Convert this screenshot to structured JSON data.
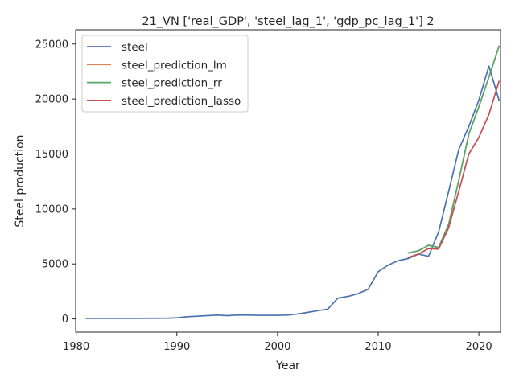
{
  "chart_data": {
    "type": "line",
    "title": "21_VN ['real_GDP', 'steel_lag_1', 'gdp_pc_lag_1'] 2",
    "xlabel": "Year",
    "ylabel": "Steel production",
    "xlim": [
      1979.95,
      2022.15
    ],
    "ylim": [
      -1200,
      26300
    ],
    "xticks": [
      1980,
      1990,
      2000,
      2010,
      2020
    ],
    "yticks": [
      0,
      5000,
      10000,
      15000,
      20000,
      25000
    ],
    "grid": false,
    "legend_position": "top-left",
    "series": [
      {
        "name": "steel",
        "color": "#4c72b0",
        "x": [
          1981,
          1982,
          1983,
          1984,
          1985,
          1986,
          1987,
          1988,
          1989,
          1990,
          1991,
          1992,
          1993,
          1994,
          1995,
          1996,
          1997,
          1998,
          1999,
          2000,
          2001,
          2002,
          2003,
          2004,
          2005,
          2006,
          2007,
          2008,
          2009,
          2010,
          2011,
          2012,
          2013,
          2014,
          2015,
          2016,
          2017,
          2018,
          2019,
          2020,
          2021,
          2022
        ],
        "y": [
          50,
          50,
          50,
          50,
          50,
          50,
          60,
          60,
          70,
          100,
          200,
          250,
          300,
          350,
          300,
          350,
          350,
          330,
          330,
          330,
          350,
          450,
          600,
          750,
          900,
          1900,
          2050,
          2300,
          2700,
          4300,
          4900,
          5300,
          5500,
          5900,
          5700,
          7900,
          11600,
          15400,
          17500,
          19900,
          23000,
          19900
        ]
      },
      {
        "name": "steel_prediction_lm",
        "color": "#dd8452",
        "x": [
          2013,
          2014,
          2015,
          2016,
          2017,
          2018,
          2019,
          2020,
          2021,
          2022
        ],
        "y": [
          6000,
          6200,
          6700,
          6500,
          8600,
          12600,
          16800,
          19300,
          22000,
          24800
        ]
      },
      {
        "name": "steel_prediction_rr",
        "color": "#55a868",
        "x": [
          2013,
          2014,
          2015,
          2016,
          2017,
          2018,
          2019,
          2020,
          2021,
          2022
        ],
        "y": [
          6000,
          6200,
          6700,
          6500,
          8600,
          12600,
          16800,
          19300,
          22000,
          24800
        ]
      },
      {
        "name": "steel_prediction_lasso",
        "color": "#c44e52",
        "x": [
          2013,
          2014,
          2015,
          2016,
          2017,
          2018,
          2019,
          2020,
          2021,
          2022
        ],
        "y": [
          5600,
          5900,
          6400,
          6350,
          8300,
          11600,
          15000,
          16500,
          18600,
          21600
        ]
      }
    ]
  }
}
